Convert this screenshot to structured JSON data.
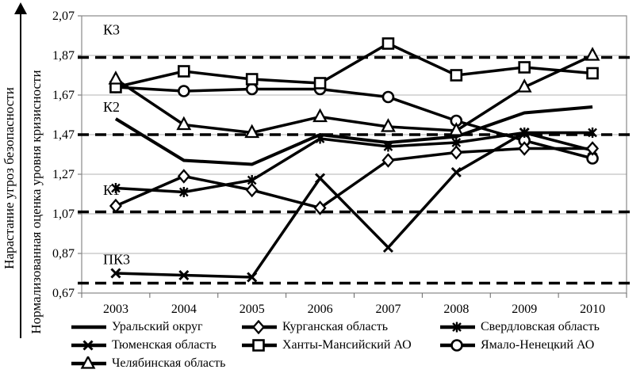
{
  "figure": {
    "y_axis_outer_title": "Нарастание угроз безопасности",
    "y_axis_inner_title": "Нормализованная оценка уровня кризисности"
  },
  "chart_data": {
    "type": "line",
    "title": "",
    "xlabel": "",
    "ylabel": "Нормализованная оценка уровня кризисности",
    "ylabel_outer": "Нарастание угроз безопасности",
    "categories": [
      "2003",
      "2004",
      "2005",
      "2006",
      "2007",
      "2008",
      "2009",
      "2010"
    ],
    "ylim": [
      0.67,
      2.07
    ],
    "ytick_values": [
      2.07,
      1.87,
      1.67,
      1.47,
      1.27,
      1.07,
      0.87,
      0.67
    ],
    "ytick_labels": [
      "2,07",
      "1,87",
      "1,67",
      "1,47",
      "1,27",
      "1,07",
      "0,87",
      "0,67"
    ],
    "grid": true,
    "legend_position": "bottom",
    "threshold_dashed_lines": [
      1.86,
      1.47,
      1.08,
      0.72
    ],
    "zone_labels": [
      {
        "label": "К3",
        "value": 2.0
      },
      {
        "label": "К2",
        "value": 1.61
      },
      {
        "label": "К1",
        "value": 1.19
      },
      {
        "label": "ПК3",
        "value": 0.84
      }
    ],
    "series": [
      {
        "name": "Уральский округ",
        "marker": "none",
        "values": [
          1.55,
          1.34,
          1.32,
          1.47,
          1.43,
          1.46,
          1.58,
          1.61
        ]
      },
      {
        "name": "Тюменская область",
        "marker": "x",
        "values": [
          0.77,
          0.76,
          0.75,
          1.25,
          0.9,
          1.28,
          1.48,
          1.39
        ]
      },
      {
        "name": "Челябинская область",
        "marker": "triangle",
        "values": [
          1.75,
          1.52,
          1.48,
          1.56,
          1.51,
          1.49,
          1.71,
          1.87
        ]
      },
      {
        "name": "Курганская область",
        "marker": "diamond",
        "values": [
          1.11,
          1.26,
          1.19,
          1.1,
          1.34,
          1.38,
          1.4,
          1.4
        ]
      },
      {
        "name": "Ханты-Мансийский АО",
        "marker": "square",
        "values": [
          1.71,
          1.79,
          1.75,
          1.73,
          1.93,
          1.77,
          1.81,
          1.78
        ]
      },
      {
        "name": "Свердловская область",
        "marker": "asterisk",
        "values": [
          1.2,
          1.18,
          1.24,
          1.45,
          1.41,
          1.43,
          1.48,
          1.48
        ]
      },
      {
        "name": "Ямало-Ненецкий АО",
        "marker": "circle",
        "values": [
          1.71,
          1.69,
          1.7,
          1.7,
          1.66,
          1.54,
          1.44,
          1.35
        ]
      }
    ],
    "legend_columns": [
      [
        0,
        1,
        2
      ],
      [
        3,
        4
      ],
      [
        5,
        6
      ]
    ]
  }
}
